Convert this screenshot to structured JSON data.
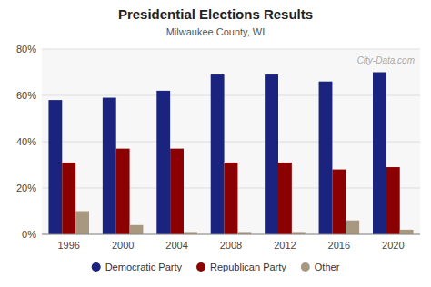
{
  "chart_data": {
    "type": "bar",
    "title": "Presidential Elections Results",
    "subtitle": "Milwaukee County, WI",
    "annotation": "City-Data.com",
    "categories": [
      "1996",
      "2000",
      "2004",
      "2008",
      "2012",
      "2016",
      "2020"
    ],
    "series": [
      {
        "name": "Democratic Party",
        "color": "#1a237e",
        "values": [
          58,
          59,
          62,
          69,
          69,
          66,
          70
        ]
      },
      {
        "name": "Republican Party",
        "color": "#8b0000",
        "values": [
          31,
          37,
          37,
          31,
          31,
          28,
          29
        ]
      },
      {
        "name": "Other",
        "color": "#a89880",
        "values": [
          10,
          4,
          1,
          1,
          1,
          6,
          2
        ]
      }
    ],
    "ylim": [
      0,
      80
    ],
    "yticks": [
      {
        "value": 0,
        "label": "0%"
      },
      {
        "value": 20,
        "label": "20%"
      },
      {
        "value": 40,
        "label": "40%"
      },
      {
        "value": 60,
        "label": "60%"
      },
      {
        "value": 80,
        "label": "80%"
      }
    ],
    "grid": true,
    "legend": "bottom"
  }
}
